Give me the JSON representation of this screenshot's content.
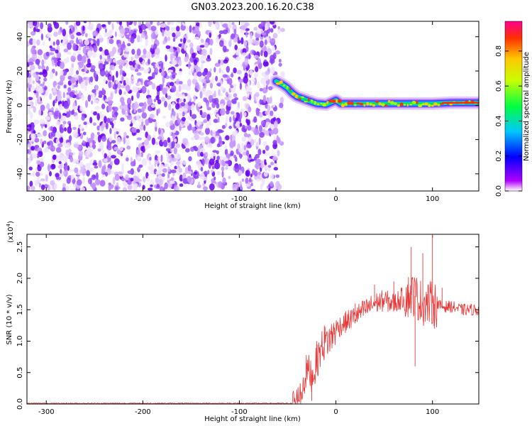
{
  "title": "GN03.2023.200.16.20.C38",
  "chart_data": [
    {
      "type": "heatmap",
      "xlabel": "Height of straight line (km)",
      "ylabel": "Frequency (Hz)",
      "xlim": [
        -320,
        148
      ],
      "ylim": [
        -50,
        49
      ],
      "x_ticks": [
        -300,
        -200,
        -100,
        0,
        100
      ],
      "y_ticks": [
        -40,
        -20,
        0,
        20,
        40
      ],
      "colorbar": {
        "label": "Normalized spectral amplitude",
        "ticks": [
          "0.0",
          "0.2",
          "0.4",
          "0.6",
          "0.8"
        ],
        "range": [
          0,
          0.97
        ],
        "colormap": "rainbow (purple to red)"
      },
      "noise_region_x": [
        -320,
        -62
      ],
      "signal_line": [
        {
          "x": -62,
          "y": 14
        },
        {
          "x": -55,
          "y": 12
        },
        {
          "x": -50,
          "y": 10
        },
        {
          "x": -45,
          "y": 7
        },
        {
          "x": -40,
          "y": 5
        },
        {
          "x": -35,
          "y": 4
        },
        {
          "x": -30,
          "y": 3
        },
        {
          "x": -25,
          "y": 2
        },
        {
          "x": -20,
          "y": 1
        },
        {
          "x": -10,
          "y": 0.5
        },
        {
          "x": 0,
          "y": 3
        },
        {
          "x": 5,
          "y": 1
        },
        {
          "x": 20,
          "y": 1
        },
        {
          "x": 40,
          "y": 1
        },
        {
          "x": 60,
          "y": 1
        },
        {
          "x": 80,
          "y": 1
        },
        {
          "x": 100,
          "y": 1
        },
        {
          "x": 120,
          "y": 1.5
        },
        {
          "x": 148,
          "y": 1.5
        }
      ]
    },
    {
      "type": "line",
      "xlabel": "Height of straight line (km)",
      "ylabel": "SNR (10 * v/v)",
      "exponent_label": "(x10",
      "exponent_power": "4",
      "xlim": [
        -320,
        148
      ],
      "ylim": [
        0,
        2.7
      ],
      "x_ticks": [
        -300,
        -200,
        -100,
        0,
        100
      ],
      "y_ticks": [
        "0.0",
        "0.5",
        "1.0",
        "1.5",
        "2.0",
        "2.5"
      ],
      "series": [
        {
          "color": "#e8393a",
          "envelope": [
            {
              "x": -320,
              "y": 0.01
            },
            {
              "x": -45,
              "y": 0.01
            },
            {
              "x": -38,
              "y": 0.05
            },
            {
              "x": -30,
              "y": 0.55
            },
            {
              "x": -24,
              "y": 0.45
            },
            {
              "x": -15,
              "y": 0.9
            },
            {
              "x": -10,
              "y": 1.0
            },
            {
              "x": -5,
              "y": 1.05
            },
            {
              "x": 0,
              "y": 1.2
            },
            {
              "x": 10,
              "y": 1.3
            },
            {
              "x": 20,
              "y": 1.4
            },
            {
              "x": 30,
              "y": 1.5
            },
            {
              "x": 40,
              "y": 1.6
            },
            {
              "x": 50,
              "y": 1.65
            },
            {
              "x": 60,
              "y": 1.6
            },
            {
              "x": 70,
              "y": 1.7
            },
            {
              "x": 80,
              "y": 1.75
            },
            {
              "x": 90,
              "y": 1.6
            },
            {
              "x": 100,
              "y": 1.6
            },
            {
              "x": 110,
              "y": 1.55
            },
            {
              "x": 120,
              "y": 1.55
            },
            {
              "x": 130,
              "y": 1.5
            },
            {
              "x": 140,
              "y": 1.5
            },
            {
              "x": 148,
              "y": 1.5
            }
          ],
          "peaks": [
            {
              "x": -30,
              "y": 0.65
            },
            {
              "x": -25,
              "y": 0.05
            },
            {
              "x": -20,
              "y": 1.0
            },
            {
              "x": -12,
              "y": 1.25
            },
            {
              "x": 20,
              "y": 1.6
            },
            {
              "x": 40,
              "y": 1.9
            },
            {
              "x": 60,
              "y": 1.95
            },
            {
              "x": 78,
              "y": 2.5
            },
            {
              "x": 82,
              "y": 0.6
            },
            {
              "x": 90,
              "y": 2.4
            },
            {
              "x": 100,
              "y": 2.7
            },
            {
              "x": 102,
              "y": 1.2
            },
            {
              "x": 110,
              "y": 1.85
            }
          ]
        }
      ]
    }
  ]
}
